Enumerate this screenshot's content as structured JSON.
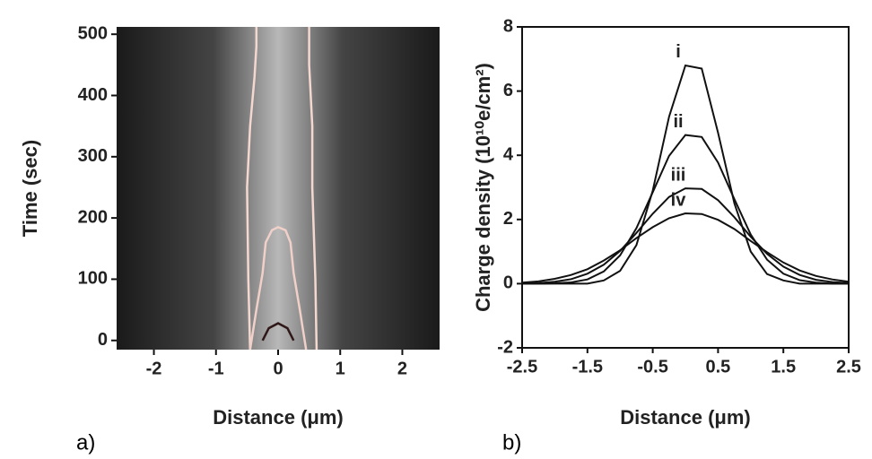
{
  "chart_data": [
    {
      "type": "heatmap",
      "label": "a)",
      "xlabel": "Distance (μm)",
      "ylabel": "Time (sec)",
      "xlim": [
        -2.6,
        2.6
      ],
      "ylim": [
        -15,
        512
      ],
      "xticks": [
        -2,
        -1,
        0,
        1,
        2
      ],
      "yticks": [
        0,
        100,
        200,
        300,
        400,
        500
      ],
      "contours": [
        {
          "color": "#f4d8d0",
          "x": [
            -0.45,
            -0.48,
            -0.5,
            -0.45,
            -0.38,
            -0.35,
            -0.35
          ],
          "y": [
            -15,
            100,
            250,
            350,
            430,
            480,
            512
          ]
        },
        {
          "color": "#f4d8d0",
          "x": [
            0.62,
            0.6,
            0.55,
            0.55,
            0.5,
            0.5
          ],
          "y": [
            -15,
            100,
            250,
            350,
            450,
            512
          ]
        },
        {
          "color": "#f0d0c8",
          "x": [
            -0.45,
            -0.35,
            -0.25,
            -0.2,
            -0.1,
            0,
            0.12,
            0.2,
            0.25,
            0.35,
            0.45
          ],
          "y": [
            -15,
            50,
            110,
            160,
            180,
            185,
            180,
            160,
            110,
            50,
            -15
          ]
        },
        {
          "color": "#301818",
          "x": [
            -0.25,
            -0.15,
            0,
            0.15,
            0.25
          ],
          "y": [
            0,
            20,
            28,
            20,
            0
          ]
        }
      ]
    },
    {
      "type": "line",
      "label": "b)",
      "xlabel": "Distance (μm)",
      "ylabel": "Charge density (10¹⁰e/cm²)",
      "xlim": [
        -2.5,
        2.5
      ],
      "ylim": [
        -2,
        8
      ],
      "xticks": [
        -2.5,
        -1.5,
        -0.5,
        0.5,
        1.5,
        2.5
      ],
      "yticks": [
        -2,
        0,
        2,
        4,
        6,
        8
      ],
      "x": [
        -2.5,
        -2.25,
        -2,
        -1.75,
        -1.5,
        -1.25,
        -1,
        -0.75,
        -0.5,
        -0.25,
        0,
        0.25,
        0.5,
        0.75,
        1,
        1.25,
        1.5,
        1.75,
        2,
        2.25,
        2.5
      ],
      "series": [
        {
          "name": "i",
          "color": "#111",
          "values": [
            0,
            0,
            0,
            0,
            0,
            0.1,
            0.4,
            1.2,
            2.9,
            5.2,
            6.8,
            6.7,
            4.7,
            2.5,
            1,
            0.3,
            0.1,
            0,
            0,
            0,
            0
          ]
        },
        {
          "name": "ii",
          "color": "#111",
          "values": [
            0,
            0,
            0.01,
            0.04,
            0.13,
            0.38,
            0.88,
            1.73,
            2.85,
            3.98,
            4.63,
            4.57,
            3.77,
            2.63,
            1.53,
            0.75,
            0.31,
            0.11,
            0.03,
            0,
            0
          ]
        },
        {
          "name": "iii",
          "color": "#111",
          "values": [
            0.01,
            0.02,
            0.06,
            0.14,
            0.31,
            0.59,
            1.02,
            1.58,
            2.18,
            2.7,
            2.97,
            2.95,
            2.6,
            2.07,
            1.46,
            0.93,
            0.53,
            0.27,
            0.12,
            0.05,
            0.02
          ]
        },
        {
          "name": "iv",
          "color": "#111",
          "values": [
            0.03,
            0.07,
            0.15,
            0.27,
            0.45,
            0.72,
            1.04,
            1.42,
            1.76,
            2.04,
            2.19,
            2.17,
            1.99,
            1.7,
            1.33,
            0.98,
            0.66,
            0.41,
            0.24,
            0.13,
            0.06
          ]
        }
      ]
    }
  ]
}
